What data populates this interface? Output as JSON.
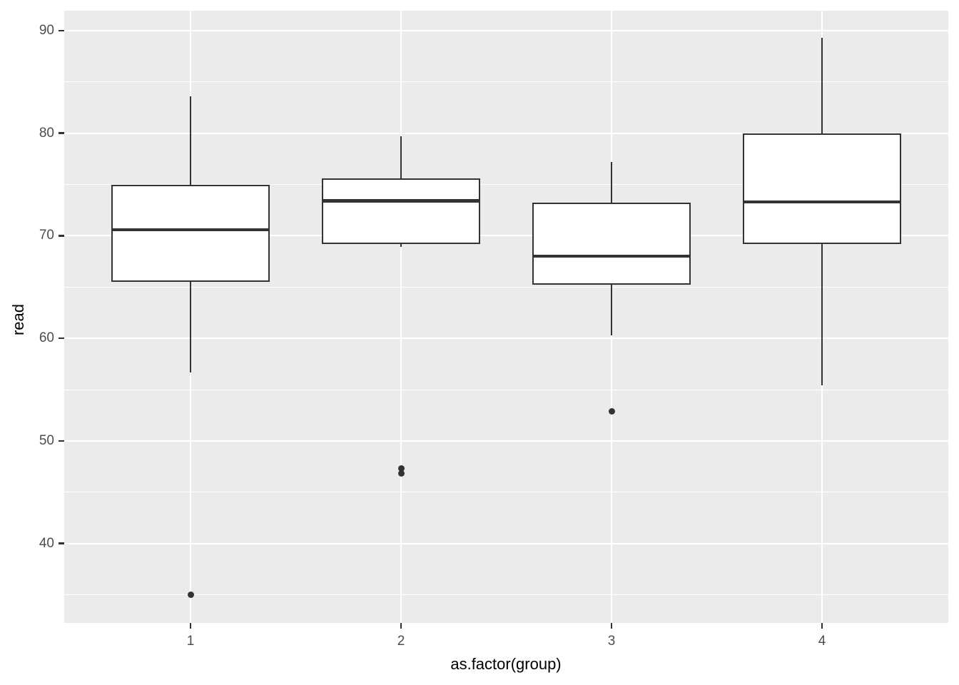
{
  "colors": {
    "panel_bg": "#EBEBEB",
    "grid": "#FFFFFF",
    "box_stroke": "#333333",
    "box_fill": "#FFFFFF",
    "axis_text": "#4D4D4D",
    "axis_title": "#000000",
    "tick_mark": "#333333",
    "figure_bg": "#FFFFFF"
  },
  "chart_data": {
    "type": "boxplot",
    "title": "",
    "xlabel": "as.factor(group)",
    "ylabel": "read",
    "categories": [
      "1",
      "2",
      "3",
      "4"
    ],
    "y_ticks": [
      40,
      50,
      60,
      70,
      80,
      90
    ],
    "y_minor_ticks": [
      35,
      45,
      55,
      65,
      75,
      85
    ],
    "ylim": [
      32.25,
      91.95
    ],
    "xlim": [
      0.4,
      4.6
    ],
    "box_width": 0.75,
    "grid": true,
    "legend_position": "none",
    "series": [
      {
        "group": "1",
        "x": 1,
        "lower_whisker": 56.7,
        "q1": 65.5,
        "median": 70.6,
        "q3": 75.0,
        "upper_whisker": 83.6,
        "outliers": [
          35.0
        ]
      },
      {
        "group": "2",
        "x": 2,
        "lower_whisker": 68.9,
        "q1": 69.2,
        "median": 73.4,
        "q3": 75.6,
        "upper_whisker": 79.7,
        "outliers": [
          47.3,
          46.8
        ]
      },
      {
        "group": "3",
        "x": 3,
        "lower_whisker": 60.3,
        "q1": 65.2,
        "median": 68.0,
        "q3": 73.2,
        "upper_whisker": 77.2,
        "outliers": [
          52.9
        ]
      },
      {
        "group": "4",
        "x": 4,
        "lower_whisker": 55.4,
        "q1": 69.2,
        "median": 73.3,
        "q3": 80.0,
        "upper_whisker": 89.3,
        "outliers": []
      }
    ]
  }
}
